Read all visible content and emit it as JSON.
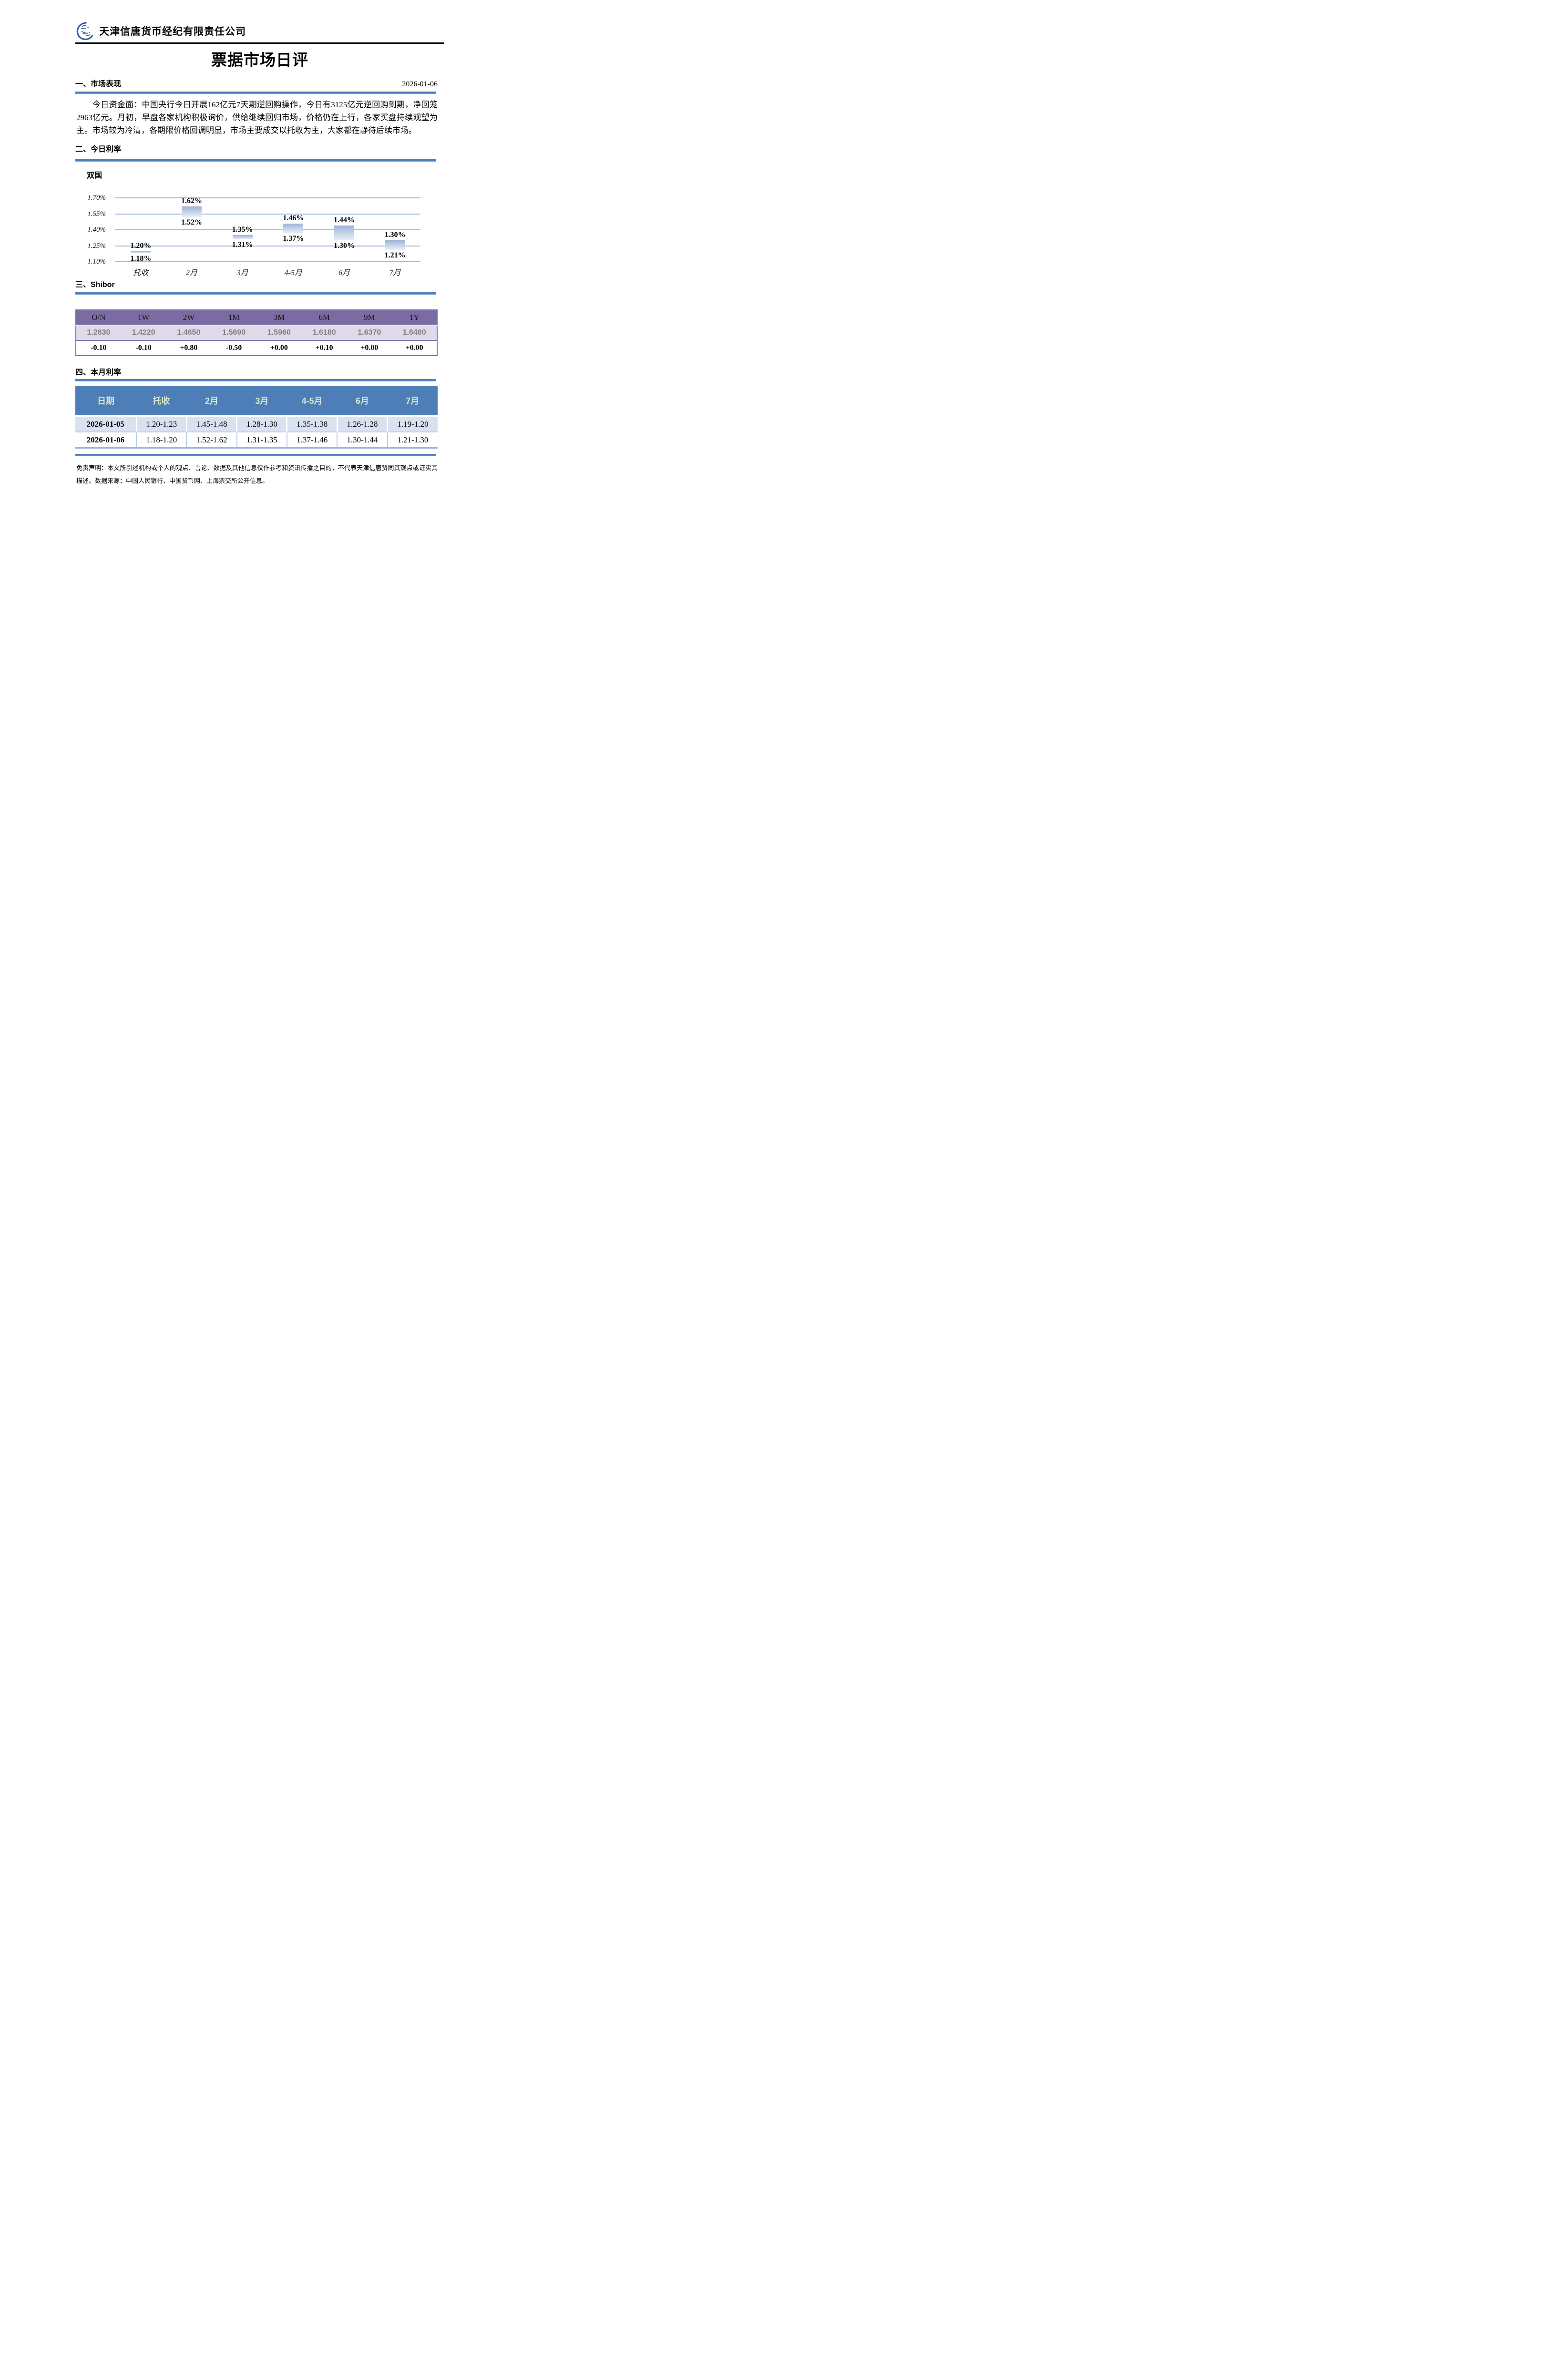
{
  "header": {
    "company": "天津信唐货币经纪有限责任公司",
    "logo": "xintang-seal-logo"
  },
  "title": "票据市场日评",
  "section1": {
    "heading": "一、市场表现",
    "date": "2026-01-06",
    "paragraph": "今日资金面：中国央行今日开展162亿元7天期逆回购操作，今日有3125亿元逆回购到期，净回笼2963亿元。月初，早盘各家机构积极询价，供给继续回归市场，价格仍在上行，各家买盘持续观望为主。市场较为冷清，各期限价格回调明显，市场主要成交以托收为主，大家都在静待后续市场。"
  },
  "section2": {
    "heading": "二、今日利率"
  },
  "section3": {
    "heading": "三、Shibor"
  },
  "section4": {
    "heading": "四、本月利率"
  },
  "chart_data": {
    "type": "bar",
    "subtype": "floating-range-bar",
    "title": "双国",
    "categories": [
      "托收",
      "2月",
      "3月",
      "4-5月",
      "6月",
      "7月"
    ],
    "series": [
      {
        "name": "利率区间",
        "low": [
          1.18,
          1.52,
          1.31,
          1.37,
          1.3,
          1.21
        ],
        "high": [
          1.2,
          1.62,
          1.35,
          1.46,
          1.44,
          1.3
        ]
      }
    ],
    "labels_high": [
      "1.20%",
      "1.62%",
      "1.35%",
      "1.46%",
      "1.44%",
      "1.30%"
    ],
    "labels_low": [
      "1.18%",
      "1.52%",
      "1.31%",
      "1.37%",
      "1.30%",
      "1.21%"
    ],
    "yticks": [
      "1.70%",
      "1.55%",
      "1.40%",
      "1.25%",
      "1.10%"
    ],
    "ytick_values": [
      1.7,
      1.55,
      1.4,
      1.25,
      1.1
    ],
    "ylim": [
      1.1,
      1.7
    ],
    "grid": true,
    "legend": "none",
    "xlabel": "",
    "ylabel": ""
  },
  "shibor_table": {
    "headers": [
      "O/N",
      "1W",
      "2W",
      "1M",
      "3M",
      "6M",
      "9M",
      "1Y"
    ],
    "rates": [
      "1.2630",
      "1.4220",
      "1.4650",
      "1.5690",
      "1.5960",
      "1.6180",
      "1.6370",
      "1.6480"
    ],
    "changes": [
      "-0.10",
      "-0.10",
      "+0.80",
      "-0.50",
      "+0.00",
      "+0.10",
      "+0.00",
      "+0.00"
    ]
  },
  "monthly_table": {
    "headers": [
      "日期",
      "托收",
      "2月",
      "3月",
      "4-5月",
      "6月",
      "7月"
    ],
    "rows": [
      {
        "date": "2026-01-05",
        "values": [
          "1.20-1.23",
          "1.45-1.48",
          "1.28-1.30",
          "1.35-1.38",
          "1.26-1.28",
          "1.19-1.20"
        ]
      },
      {
        "date": "2026-01-06",
        "values": [
          "1.18-1.20",
          "1.52-1.62",
          "1.31-1.35",
          "1.37-1.46",
          "1.30-1.44",
          "1.21-1.30"
        ]
      }
    ]
  },
  "disclaimer": "免责声明：本文所引述机构或个人的观点、言论、数据及其他信息仅作参考和资讯传播之目的，不代表天津信唐赞同其观点或证实其描述。数据来源：中国人民银行、中国货币网、上海票交所公开信息。",
  "colors": {
    "divider_blue": "#4E81BD",
    "monthly_header_blue": "#4D7EB8",
    "monthly_header_text_green": "#D8E6CC",
    "monthly_row_light_blue": "#D9E2F1",
    "shibor_header_purple": "#7B6BA3",
    "shibor_row_lavender": "#DFD9E9",
    "shibor_rate_gray": "#7F7F7F",
    "gridline_blue": "#9FB6D4",
    "bar_gradient_top": "#9DB3D8",
    "bar_gradient_bottom": "#EAEFF7",
    "logo_blue": "#3A63A8",
    "rule_black": "#000000"
  }
}
